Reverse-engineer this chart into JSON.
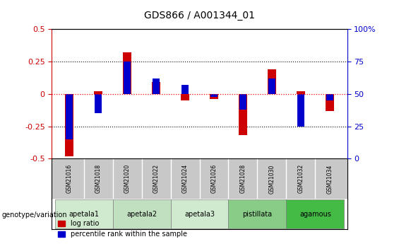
{
  "title": "GDS866 / A001344_01",
  "samples": [
    "GSM21016",
    "GSM21018",
    "GSM21020",
    "GSM21022",
    "GSM21024",
    "GSM21026",
    "GSM21028",
    "GSM21030",
    "GSM21032",
    "GSM21034"
  ],
  "log_ratio": [
    -0.48,
    0.02,
    0.32,
    0.09,
    -0.05,
    -0.04,
    -0.32,
    0.19,
    0.02,
    -0.13
  ],
  "percentile_rank": [
    15,
    35,
    75,
    62,
    57,
    48,
    38,
    62,
    25,
    45
  ],
  "groups": [
    {
      "label": "apetala1",
      "indices": [
        0,
        1
      ],
      "color": "#d0ead0"
    },
    {
      "label": "apetala2",
      "indices": [
        2,
        3
      ],
      "color": "#c0e0c0"
    },
    {
      "label": "apetala3",
      "indices": [
        4,
        5
      ],
      "color": "#d0ead0"
    },
    {
      "label": "pistillata",
      "indices": [
        6,
        7
      ],
      "color": "#88cc88"
    },
    {
      "label": "agamous",
      "indices": [
        8,
        9
      ],
      "color": "#44bb44"
    }
  ],
  "ylim": [
    -0.5,
    0.5
  ],
  "yticks": [
    -0.5,
    -0.25,
    0.0,
    0.25,
    0.5
  ],
  "right_yticks": [
    0,
    25,
    50,
    75,
    100
  ],
  "bar_color_red": "#cc0000",
  "bar_color_blue": "#0000cc",
  "bar_width": 0.28,
  "legend_labels": [
    "log ratio",
    "percentile rank within the sample"
  ],
  "genotype_label": "genotype/variation",
  "background_color": "#ffffff",
  "plot_bg": "#ffffff",
  "tick_color_left": "#cc0000",
  "tick_color_right": "#0000cc",
  "sample_row_color": "#c8c8c8",
  "group_colors": [
    "#d0ead0",
    "#c0e0c0",
    "#d0ead0",
    "#88cc88",
    "#44bb44"
  ]
}
